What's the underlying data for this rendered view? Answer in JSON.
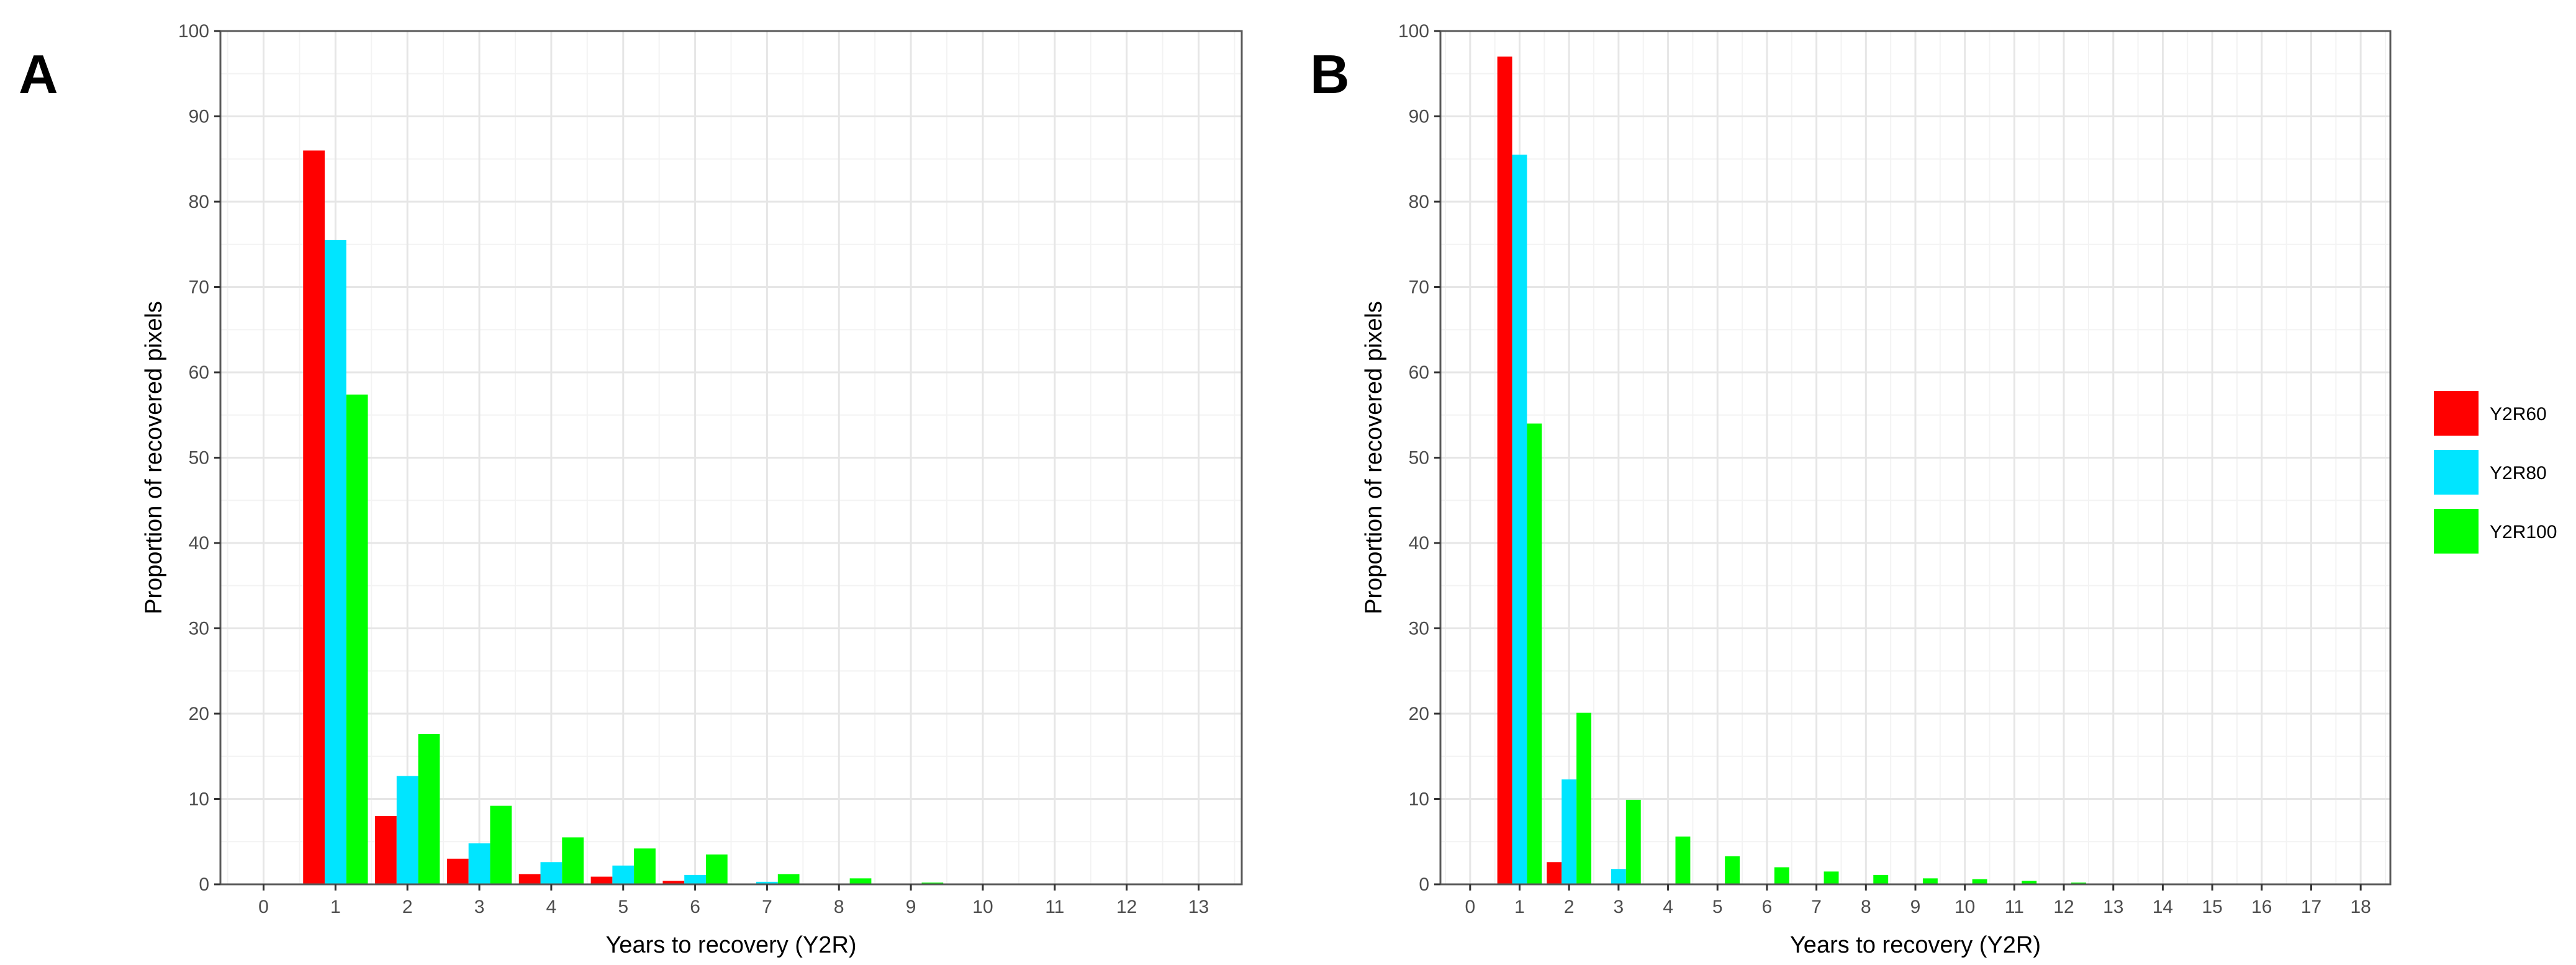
{
  "chart_data": [
    {
      "type": "bar",
      "panel_label": "A",
      "xlabel": "Years to recovery (Y2R)",
      "ylabel": "Proportion of recovered pixels",
      "ylim": [
        0,
        100
      ],
      "yticks": [
        0,
        10,
        20,
        30,
        40,
        50,
        60,
        70,
        80,
        90,
        100
      ],
      "categories": [
        "0",
        "1",
        "2",
        "3",
        "4",
        "5",
        "6",
        "7",
        "8",
        "9",
        "10",
        "11",
        "12",
        "13"
      ],
      "grid": true,
      "series": [
        {
          "name": "Y2R60",
          "values": [
            0,
            86,
            8,
            3,
            1.2,
            0.9,
            0.4,
            0,
            0,
            0,
            0,
            0,
            0,
            0
          ]
        },
        {
          "name": "Y2R80",
          "values": [
            0,
            75.5,
            12.7,
            4.8,
            2.6,
            2.2,
            1.1,
            0.3,
            0.1,
            0,
            0,
            0,
            0,
            0
          ]
        },
        {
          "name": "Y2R100",
          "values": [
            0,
            57.4,
            17.6,
            9.2,
            5.5,
            4.2,
            3.5,
            1.2,
            0.7,
            0.2,
            0.1,
            0.1,
            0.1,
            0.1
          ]
        }
      ]
    },
    {
      "type": "bar",
      "panel_label": "B",
      "xlabel": "Years to recovery (Y2R)",
      "ylabel": "Proportion of recovered pixels",
      "ylim": [
        0,
        100
      ],
      "yticks": [
        0,
        10,
        20,
        30,
        40,
        50,
        60,
        70,
        80,
        90,
        100
      ],
      "categories": [
        "0",
        "1",
        "2",
        "3",
        "4",
        "5",
        "6",
        "7",
        "8",
        "9",
        "10",
        "11",
        "12",
        "13",
        "14",
        "15",
        "16",
        "17",
        "18"
      ],
      "grid": true,
      "series": [
        {
          "name": "Y2R60",
          "values": [
            0,
            97,
            2.6,
            0,
            0,
            0,
            0,
            0,
            0,
            0,
            0,
            0,
            0,
            0,
            0,
            0,
            0,
            0,
            0
          ]
        },
        {
          "name": "Y2R80",
          "values": [
            0,
            85.5,
            12.3,
            1.8,
            0,
            0,
            0,
            0,
            0,
            0,
            0,
            0,
            0,
            0,
            0,
            0,
            0,
            0,
            0
          ]
        },
        {
          "name": "Y2R100",
          "values": [
            0,
            54,
            20.1,
            9.9,
            5.6,
            3.3,
            2.0,
            1.5,
            1.1,
            0.7,
            0.6,
            0.4,
            0.2,
            0.1,
            0.1,
            0,
            0,
            0,
            0
          ]
        }
      ]
    }
  ],
  "legend": {
    "placement": "right",
    "items": [
      {
        "label": "Y2R60",
        "color": "#ff0000"
      },
      {
        "label": "Y2R80",
        "color": "#00e5ff"
      },
      {
        "label": "Y2R100",
        "color": "#00ff00"
      }
    ]
  },
  "colors": {
    "Y2R60": "#ff0000",
    "Y2R80": "#00e5ff",
    "Y2R100": "#00ff00",
    "grid_major": "#e6e6e6",
    "grid_minor": "#f3f3f3",
    "panel_border": "#595959"
  }
}
